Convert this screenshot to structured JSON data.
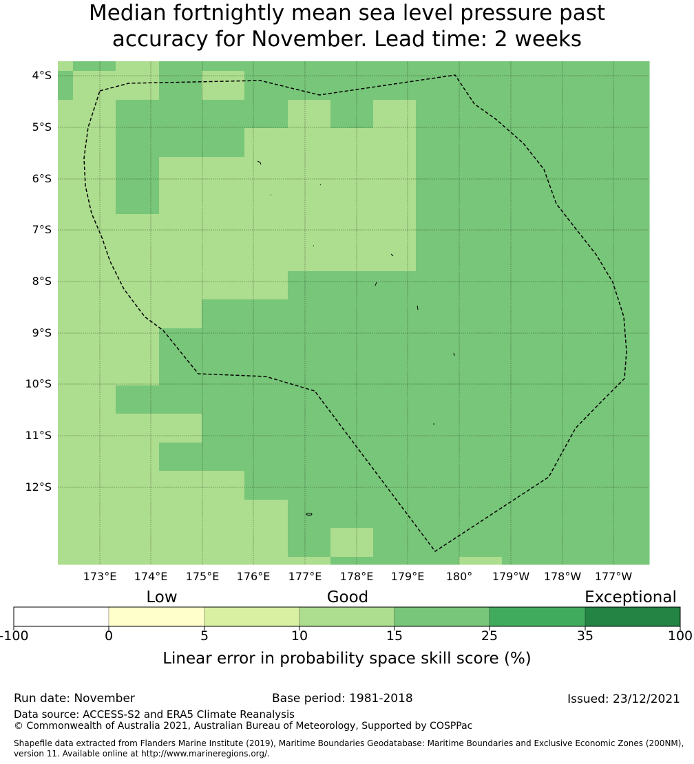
{
  "chart_data": {
    "type": "heatmap",
    "title_line1": "Median fortnightly mean sea level pressure past",
    "title_line2": "accuracy for November. Lead time: 2 weeks",
    "x_tick_labels": [
      "173°E",
      "174°E",
      "175°E",
      "176°E",
      "177°E",
      "178°E",
      "179°E",
      "180°",
      "179°W",
      "178°W",
      "177°W"
    ],
    "y_tick_labels": [
      "4°S",
      "5°S",
      "6°S",
      "7°S",
      "8°S",
      "9°S",
      "10°S",
      "11°S",
      "12°S"
    ],
    "grid": true,
    "bins": [
      {
        "range": "-100 to 0",
        "color": "#ffffff"
      },
      {
        "range": "0 to 5",
        "color": "#ffffcc"
      },
      {
        "range": "5 to 10",
        "color": "#d9f0a3"
      },
      {
        "range": "10 to 15",
        "color": "#addd8e"
      },
      {
        "range": "15 to 25",
        "color": "#78c679"
      },
      {
        "range": "25 to 35",
        "color": "#41ab5d"
      },
      {
        "range": "35 to 100",
        "color": "#238443"
      }
    ],
    "cell_code_to_bin": {
      "L": 3,
      "M": 4
    },
    "cells_rows_north_to_south": [
      "LMLMMMMMMMMMMMM",
      "MLLMLMMMMMMMMMM",
      "LLMMMMLMLMMMMMM",
      "LLMMMLLLLMMMMMM",
      "LLMLLLLLLMMMMMM",
      "LLMLLLLLLMMMMMM",
      "LLLLLLLLLMMMMMM",
      "LLLLLLLLLMMMMMM",
      "LLLLLLMMMMMMMMM",
      "LLLLMMMMMMMMMMM",
      "LLLMMMMMMMMMMMM",
      "LLLMMMMMMMMMMMM",
      "LLMMMMMMMMMMMMM",
      "LLLLMMMMMMMMMMM",
      "LLLMMMMMMMMMMMM",
      "LLLLLMMMMMMMMMM",
      "LLLLLLMMMMMMMMM",
      "LLLLLLMLMMMMMMM",
      "LLLLLLLMMMLMMMM"
    ],
    "colorbar": {
      "tick_labels": [
        "-100",
        "0",
        "5",
        "10",
        "15",
        "25",
        "35",
        "100"
      ],
      "categories": [
        "Low",
        "Good",
        "Exceptional"
      ],
      "label": "Linear error in probability space skill score (%)"
    }
  },
  "footer": {
    "run_date": "Run date: November",
    "base_period": "Base period: 1981-2018",
    "issued": "Issued: 23/12/2021",
    "data_source": "Data source: ACCESS-S2 and ERA5 Climate Reanalysis",
    "copyright": "© Commonwealth of Australia 2021, Australian Bureau of Meteorology, Supported by COSPPac",
    "shapefile_line1": "Shapefile data extracted from Flanders Marine Institute (2019), Maritime Boundaries Geodatabase: Maritime Boundaries and Exclusive Economic Zones (200NM),",
    "shapefile_line2": "version 11. Available online at http://www.marineregions.org/."
  }
}
